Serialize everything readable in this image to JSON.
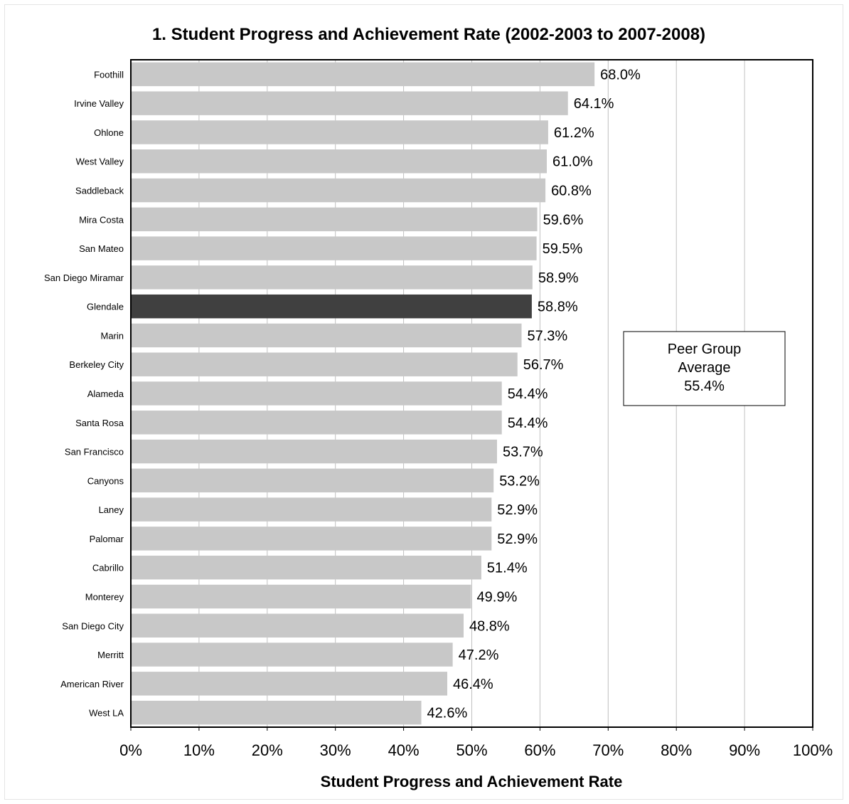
{
  "chart_data": {
    "type": "bar",
    "orientation": "horizontal",
    "title": "1. Student Progress and Achievement Rate (2002-2003 to 2007-2008)",
    "xlabel": "Student Progress and Achievement Rate",
    "ylabel": "",
    "xlim": [
      0,
      100
    ],
    "grid": true,
    "x_ticks": [
      "0%",
      "10%",
      "20%",
      "30%",
      "40%",
      "50%",
      "60%",
      "70%",
      "80%",
      "90%",
      "100%"
    ],
    "categories": [
      "Foothill",
      "Irvine Valley",
      "Ohlone",
      "West Valley",
      "Saddleback",
      "Mira Costa",
      "San Mateo",
      "San Diego Miramar",
      "Glendale",
      "Marin",
      "Berkeley City",
      "Alameda",
      "Santa Rosa",
      "San Francisco",
      "Canyons",
      "Laney",
      "Palomar",
      "Cabrillo",
      "Monterey",
      "San Diego City",
      "Merritt",
      "American River",
      "West LA"
    ],
    "values": [
      68.0,
      64.1,
      61.2,
      61.0,
      60.8,
      59.6,
      59.5,
      58.9,
      58.8,
      57.3,
      56.7,
      54.4,
      54.4,
      53.7,
      53.2,
      52.9,
      52.9,
      51.4,
      49.9,
      48.8,
      47.2,
      46.4,
      42.6
    ],
    "data_labels": [
      "68.0%",
      "64.1%",
      "61.2%",
      "61.0%",
      "60.8%",
      "59.6%",
      "59.5%",
      "58.9%",
      "58.8%",
      "57.3%",
      "56.7%",
      "54.4%",
      "54.4%",
      "53.7%",
      "53.2%",
      "52.9%",
      "52.9%",
      "51.4%",
      "49.9%",
      "48.8%",
      "47.2%",
      "46.4%",
      "42.6%"
    ],
    "highlight_category": "Glendale",
    "colors": {
      "bar": "#c8c8c8",
      "highlight": "#404040",
      "grid": "#c0c0c0",
      "frame": "#000000"
    },
    "annotation": {
      "lines": [
        "Peer Group",
        "Average",
        "55.4%"
      ]
    }
  }
}
